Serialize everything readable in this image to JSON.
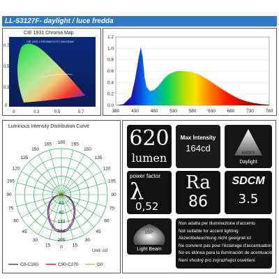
{
  "product_title": "LL-53127F- daylight / luce fredda",
  "cie": {
    "title": "CIE 1931 Chroma Map",
    "inner_title": "CIE 1931 CHROMATICITY DIAGRAM",
    "x_ticks": [
      "0",
      "0.3",
      "0.5",
      "0.7"
    ],
    "y_ticks": [
      "0.7",
      "0.5",
      "0.3",
      "0"
    ]
  },
  "spectrum": {
    "chart_data": {
      "type": "area",
      "y_ticks": [
        "1.2",
        "1.0",
        "0.8",
        "0.6",
        "0.4",
        "0.2",
        "0.0"
      ],
      "x_ticks": [
        "380",
        "430",
        "480",
        "530",
        "580",
        "630",
        "680",
        "730",
        "780"
      ],
      "ylim": [
        0,
        1.2
      ],
      "xlim": [
        380,
        780
      ],
      "x": [
        380,
        400,
        420,
        430,
        440,
        445,
        450,
        455,
        460,
        470,
        480,
        490,
        500,
        510,
        520,
        530,
        540,
        550,
        560,
        570,
        580,
        590,
        600,
        620,
        640,
        660,
        680,
        700,
        720,
        740,
        760,
        780
      ],
      "y": [
        0.0,
        0.02,
        0.15,
        0.45,
        0.85,
        1.02,
        0.85,
        0.5,
        0.32,
        0.25,
        0.27,
        0.33,
        0.42,
        0.5,
        0.55,
        0.58,
        0.6,
        0.6,
        0.6,
        0.59,
        0.58,
        0.56,
        0.53,
        0.45,
        0.36,
        0.27,
        0.19,
        0.12,
        0.07,
        0.04,
        0.02,
        0.01
      ]
    }
  },
  "polar": {
    "title": "Luminous Intensity Distribution Curve",
    "angle_labels": [
      "180",
      "165",
      "165",
      "150",
      "150",
      "135",
      "135",
      "120",
      "120",
      "105",
      "105",
      "90",
      "90",
      "75",
      "75",
      "60",
      "60",
      "45",
      "45",
      "30",
      "30",
      "15",
      "15",
      "0"
    ],
    "radial_labels": [
      "41",
      "82",
      "123",
      "164",
      "205"
    ],
    "unit": "Unit: cd",
    "legend": [
      "C0-C180",
      "C90-C270",
      "G0"
    ],
    "legend_colors": [
      "#1f3fb0",
      "#c8102e",
      "#d9b13b"
    ]
  },
  "specs": {
    "lumen_value": "620",
    "lumen_unit": "lumen",
    "max_intensity_label": "Max Intensity",
    "max_intensity_value": "164cd",
    "cct_label": "6000°k",
    "cct_name": "Daylight",
    "pf_label": "power factor",
    "pf_symbol": "λ",
    "pf_value": "0,52",
    "ra_label": "Ra",
    "ra_value": "86",
    "sdcm_label": "SDCM",
    "sdcm_value": "3.5",
    "beam_angle": "150°",
    "beam_label": "Light Beam",
    "accent_notes": [
      "Non adatta per illuminazione d'accento",
      "Not suitable for accent lighting",
      "Akzentbeleuchtung nicht geeignet ist",
      "Ne convient pas pour l'éclairage d'accentuation",
      "No es idónea para la iluminación de acentuación",
      "Není vhodný pro zvýrazňující osvětlení"
    ]
  }
}
